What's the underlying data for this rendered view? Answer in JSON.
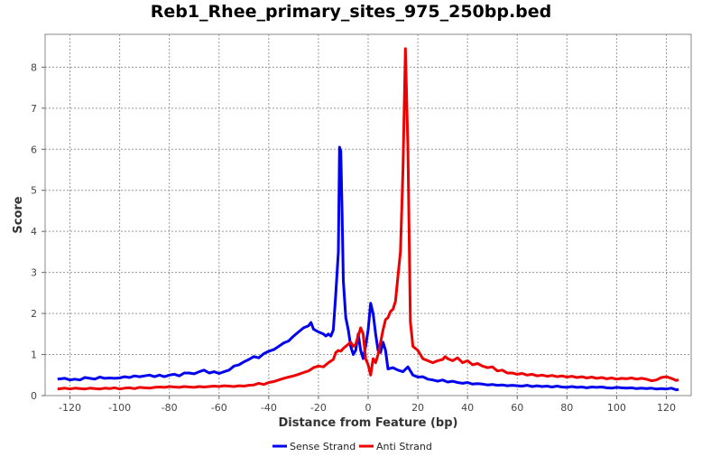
{
  "chart_data": {
    "type": "line",
    "title": "Reb1_Rhee_primary_sites_975_250bp.bed",
    "xlabel": "Distance from Feature (bp)",
    "ylabel": "Score",
    "xlim": [
      -130,
      130
    ],
    "ylim": [
      0,
      8.8
    ],
    "xticks": [
      -120,
      -100,
      -80,
      -60,
      -40,
      -20,
      0,
      20,
      40,
      60,
      80,
      100,
      120
    ],
    "yticks": [
      0,
      1,
      2,
      3,
      4,
      5,
      6,
      7,
      8
    ],
    "grid": true,
    "legend": "bottom",
    "series": [
      {
        "name": "Sense Strand",
        "color": "#0000ee",
        "points": [
          [
            -125,
            0.4
          ],
          [
            -122,
            0.42
          ],
          [
            -120,
            0.38
          ],
          [
            -118,
            0.4
          ],
          [
            -116,
            0.38
          ],
          [
            -114,
            0.44
          ],
          [
            -112,
            0.42
          ],
          [
            -110,
            0.4
          ],
          [
            -108,
            0.45
          ],
          [
            -106,
            0.42
          ],
          [
            -104,
            0.43
          ],
          [
            -102,
            0.42
          ],
          [
            -100,
            0.43
          ],
          [
            -98,
            0.46
          ],
          [
            -96,
            0.44
          ],
          [
            -94,
            0.48
          ],
          [
            -92,
            0.46
          ],
          [
            -90,
            0.48
          ],
          [
            -88,
            0.5
          ],
          [
            -86,
            0.46
          ],
          [
            -84,
            0.5
          ],
          [
            -82,
            0.46
          ],
          [
            -80,
            0.5
          ],
          [
            -78,
            0.52
          ],
          [
            -76,
            0.48
          ],
          [
            -74,
            0.55
          ],
          [
            -72,
            0.55
          ],
          [
            -70,
            0.53
          ],
          [
            -68,
            0.58
          ],
          [
            -66,
            0.62
          ],
          [
            -64,
            0.55
          ],
          [
            -62,
            0.58
          ],
          [
            -60,
            0.54
          ],
          [
            -58,
            0.58
          ],
          [
            -56,
            0.62
          ],
          [
            -54,
            0.72
          ],
          [
            -52,
            0.75
          ],
          [
            -50,
            0.82
          ],
          [
            -48,
            0.88
          ],
          [
            -46,
            0.95
          ],
          [
            -44,
            0.92
          ],
          [
            -42,
            1.02
          ],
          [
            -40,
            1.08
          ],
          [
            -38,
            1.12
          ],
          [
            -36,
            1.2
          ],
          [
            -34,
            1.28
          ],
          [
            -32,
            1.33
          ],
          [
            -30,
            1.45
          ],
          [
            -28,
            1.55
          ],
          [
            -26,
            1.65
          ],
          [
            -24,
            1.7
          ],
          [
            -23,
            1.78
          ],
          [
            -22,
            1.62
          ],
          [
            -20,
            1.55
          ],
          [
            -18,
            1.5
          ],
          [
            -17,
            1.45
          ],
          [
            -16,
            1.5
          ],
          [
            -15,
            1.45
          ],
          [
            -14,
            1.6
          ],
          [
            -13,
            2.5
          ],
          [
            -12,
            3.5
          ],
          [
            -11.5,
            6.05
          ],
          [
            -11,
            5.95
          ],
          [
            -10.5,
            4.5
          ],
          [
            -10,
            2.8
          ],
          [
            -9,
            1.9
          ],
          [
            -8,
            1.6
          ],
          [
            -7,
            1.2
          ],
          [
            -6,
            1.0
          ],
          [
            -5,
            1.1
          ],
          [
            -4,
            1.5
          ],
          [
            -3,
            1.1
          ],
          [
            -2,
            0.9
          ],
          [
            -1,
            1.2
          ],
          [
            0,
            1.6
          ],
          [
            1,
            2.25
          ],
          [
            2,
            2.0
          ],
          [
            3,
            1.5
          ],
          [
            4,
            1.1
          ],
          [
            5,
            1.05
          ],
          [
            6,
            1.3
          ],
          [
            7,
            1.1
          ],
          [
            8,
            0.65
          ],
          [
            10,
            0.68
          ],
          [
            12,
            0.62
          ],
          [
            14,
            0.58
          ],
          [
            16,
            0.7
          ],
          [
            18,
            0.5
          ],
          [
            20,
            0.45
          ],
          [
            22,
            0.46
          ],
          [
            24,
            0.4
          ],
          [
            26,
            0.38
          ],
          [
            28,
            0.35
          ],
          [
            30,
            0.38
          ],
          [
            32,
            0.33
          ],
          [
            34,
            0.35
          ],
          [
            36,
            0.32
          ],
          [
            38,
            0.3
          ],
          [
            40,
            0.32
          ],
          [
            42,
            0.28
          ],
          [
            44,
            0.29
          ],
          [
            46,
            0.28
          ],
          [
            48,
            0.26
          ],
          [
            50,
            0.27
          ],
          [
            52,
            0.25
          ],
          [
            54,
            0.26
          ],
          [
            56,
            0.24
          ],
          [
            58,
            0.25
          ],
          [
            60,
            0.24
          ],
          [
            62,
            0.23
          ],
          [
            64,
            0.25
          ],
          [
            66,
            0.22
          ],
          [
            68,
            0.24
          ],
          [
            70,
            0.22
          ],
          [
            72,
            0.23
          ],
          [
            74,
            0.21
          ],
          [
            76,
            0.23
          ],
          [
            78,
            0.21
          ],
          [
            80,
            0.2
          ],
          [
            82,
            0.22
          ],
          [
            84,
            0.2
          ],
          [
            86,
            0.21
          ],
          [
            88,
            0.19
          ],
          [
            90,
            0.21
          ],
          [
            92,
            0.2
          ],
          [
            94,
            0.21
          ],
          [
            96,
            0.19
          ],
          [
            98,
            0.18
          ],
          [
            100,
            0.2
          ],
          [
            102,
            0.19
          ],
          [
            104,
            0.18
          ],
          [
            106,
            0.19
          ],
          [
            108,
            0.17
          ],
          [
            110,
            0.18
          ],
          [
            112,
            0.17
          ],
          [
            114,
            0.18
          ],
          [
            116,
            0.16
          ],
          [
            118,
            0.17
          ],
          [
            120,
            0.16
          ],
          [
            122,
            0.18
          ],
          [
            124,
            0.14
          ],
          [
            125,
            0.15
          ]
        ]
      },
      {
        "name": "Anti Strand",
        "color": "#ee0000",
        "points": [
          [
            -125,
            0.16
          ],
          [
            -122,
            0.18
          ],
          [
            -120,
            0.16
          ],
          [
            -118,
            0.18
          ],
          [
            -116,
            0.17
          ],
          [
            -114,
            0.16
          ],
          [
            -112,
            0.18
          ],
          [
            -110,
            0.17
          ],
          [
            -108,
            0.16
          ],
          [
            -106,
            0.18
          ],
          [
            -104,
            0.17
          ],
          [
            -102,
            0.19
          ],
          [
            -100,
            0.16
          ],
          [
            -98,
            0.18
          ],
          [
            -96,
            0.19
          ],
          [
            -94,
            0.17
          ],
          [
            -92,
            0.2
          ],
          [
            -90,
            0.19
          ],
          [
            -88,
            0.18
          ],
          [
            -86,
            0.2
          ],
          [
            -84,
            0.21
          ],
          [
            -82,
            0.2
          ],
          [
            -80,
            0.22
          ],
          [
            -78,
            0.21
          ],
          [
            -76,
            0.2
          ],
          [
            -74,
            0.22
          ],
          [
            -72,
            0.21
          ],
          [
            -70,
            0.2
          ],
          [
            -68,
            0.22
          ],
          [
            -66,
            0.21
          ],
          [
            -64,
            0.22
          ],
          [
            -62,
            0.23
          ],
          [
            -60,
            0.22
          ],
          [
            -58,
            0.24
          ],
          [
            -56,
            0.23
          ],
          [
            -54,
            0.22
          ],
          [
            -52,
            0.24
          ],
          [
            -50,
            0.23
          ],
          [
            -48,
            0.25
          ],
          [
            -46,
            0.26
          ],
          [
            -44,
            0.3
          ],
          [
            -42,
            0.27
          ],
          [
            -40,
            0.32
          ],
          [
            -38,
            0.34
          ],
          [
            -36,
            0.38
          ],
          [
            -34,
            0.42
          ],
          [
            -32,
            0.45
          ],
          [
            -30,
            0.48
          ],
          [
            -28,
            0.52
          ],
          [
            -26,
            0.56
          ],
          [
            -24,
            0.6
          ],
          [
            -22,
            0.68
          ],
          [
            -20,
            0.72
          ],
          [
            -18,
            0.7
          ],
          [
            -16,
            0.8
          ],
          [
            -14,
            0.88
          ],
          [
            -13,
            1.05
          ],
          [
            -12,
            1.1
          ],
          [
            -11,
            1.08
          ],
          [
            -10,
            1.15
          ],
          [
            -9,
            1.2
          ],
          [
            -8,
            1.25
          ],
          [
            -7,
            1.3
          ],
          [
            -6,
            1.2
          ],
          [
            -5,
            1.25
          ],
          [
            -4,
            1.45
          ],
          [
            -3,
            1.65
          ],
          [
            -2,
            1.5
          ],
          [
            -1,
            0.9
          ],
          [
            0,
            0.75
          ],
          [
            1,
            0.5
          ],
          [
            2,
            0.9
          ],
          [
            3,
            0.8
          ],
          [
            4,
            1.0
          ],
          [
            5,
            1.3
          ],
          [
            6,
            1.6
          ],
          [
            7,
            1.85
          ],
          [
            8,
            1.9
          ],
          [
            9,
            2.05
          ],
          [
            10,
            2.1
          ],
          [
            11,
            2.3
          ],
          [
            12,
            2.9
          ],
          [
            13,
            3.5
          ],
          [
            14,
            5.5
          ],
          [
            15,
            8.45
          ],
          [
            16,
            6.0
          ],
          [
            17,
            1.8
          ],
          [
            18,
            1.2
          ],
          [
            19,
            1.15
          ],
          [
            20,
            1.1
          ],
          [
            22,
            0.9
          ],
          [
            24,
            0.85
          ],
          [
            26,
            0.8
          ],
          [
            28,
            0.85
          ],
          [
            30,
            0.88
          ],
          [
            31,
            0.95
          ],
          [
            32,
            0.9
          ],
          [
            34,
            0.85
          ],
          [
            36,
            0.92
          ],
          [
            38,
            0.8
          ],
          [
            40,
            0.85
          ],
          [
            42,
            0.75
          ],
          [
            44,
            0.78
          ],
          [
            46,
            0.72
          ],
          [
            48,
            0.68
          ],
          [
            50,
            0.7
          ],
          [
            52,
            0.6
          ],
          [
            54,
            0.62
          ],
          [
            56,
            0.55
          ],
          [
            58,
            0.55
          ],
          [
            60,
            0.52
          ],
          [
            62,
            0.54
          ],
          [
            64,
            0.5
          ],
          [
            66,
            0.52
          ],
          [
            68,
            0.48
          ],
          [
            70,
            0.5
          ],
          [
            72,
            0.47
          ],
          [
            74,
            0.49
          ],
          [
            76,
            0.46
          ],
          [
            78,
            0.48
          ],
          [
            80,
            0.45
          ],
          [
            82,
            0.47
          ],
          [
            84,
            0.44
          ],
          [
            86,
            0.46
          ],
          [
            88,
            0.43
          ],
          [
            90,
            0.45
          ],
          [
            92,
            0.42
          ],
          [
            94,
            0.44
          ],
          [
            96,
            0.41
          ],
          [
            98,
            0.43
          ],
          [
            100,
            0.4
          ],
          [
            102,
            0.42
          ],
          [
            104,
            0.41
          ],
          [
            106,
            0.43
          ],
          [
            108,
            0.4
          ],
          [
            110,
            0.42
          ],
          [
            112,
            0.4
          ],
          [
            114,
            0.36
          ],
          [
            116,
            0.38
          ],
          [
            118,
            0.44
          ],
          [
            120,
            0.46
          ],
          [
            122,
            0.42
          ],
          [
            124,
            0.37
          ],
          [
            125,
            0.38
          ]
        ]
      }
    ]
  }
}
